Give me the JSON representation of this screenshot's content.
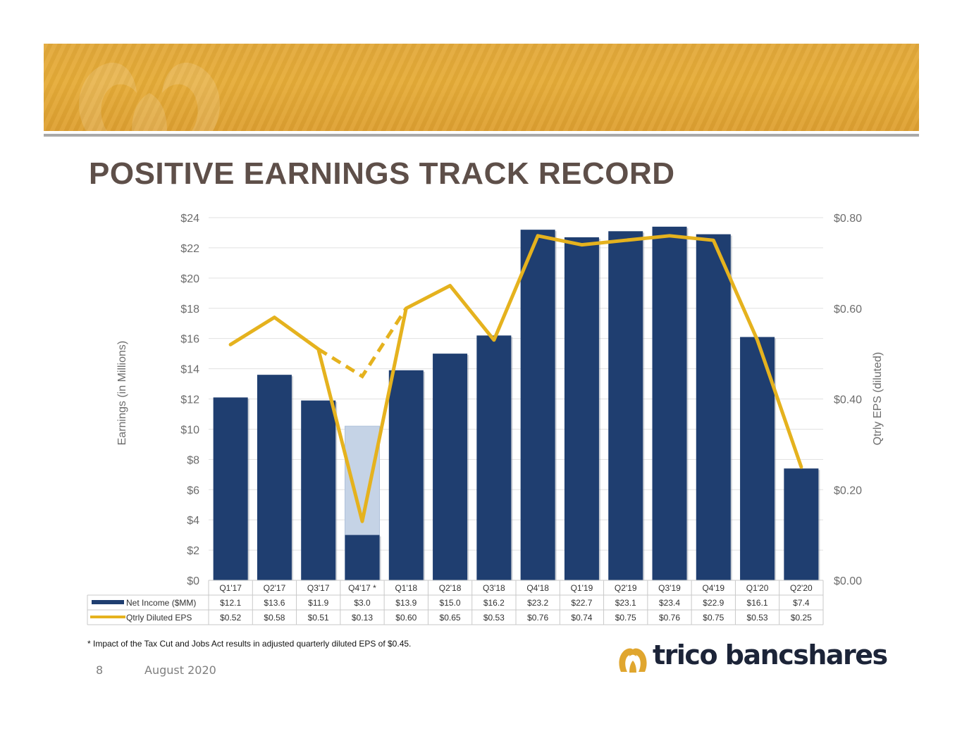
{
  "slide": {
    "title": "POSITIVE EARNINGS TRACK RECORD",
    "footnote": "* Impact of the Tax Cut and Jobs Act results in adjusted quarterly diluted EPS of $0.45.",
    "page_number": "8",
    "date": "August 2020",
    "logo_text": "trico bancshares",
    "banner_color": "#e5aa37",
    "title_color": "#5e4f49"
  },
  "chart_data": {
    "type": "bar",
    "categories": [
      "Q1'17",
      "Q2'17",
      "Q3'17",
      "Q4'17 *",
      "Q1'18",
      "Q2'18",
      "Q3'18",
      "Q4'18",
      "Q1'19",
      "Q2'19",
      "Q3'19",
      "Q4'19",
      "Q1'20",
      "Q2'20"
    ],
    "series": [
      {
        "name": "Net Income ($MM)",
        "type": "bar",
        "axis": "left",
        "color": "#1f3e70",
        "values": [
          12.1,
          13.6,
          11.9,
          3.0,
          13.9,
          15.0,
          16.2,
          23.2,
          22.7,
          23.1,
          23.4,
          22.9,
          16.1,
          7.4
        ],
        "labels": [
          "$12.1",
          "$13.6",
          "$11.9",
          "$3.0",
          "$13.9",
          "$15.0",
          "$16.2",
          "$23.2",
          "$22.7",
          "$23.1",
          "$23.4",
          "$22.9",
          "$16.1",
          "$7.4"
        ]
      },
      {
        "name": "Qtrly Diluted EPS",
        "type": "line",
        "axis": "right",
        "color": "#e5b21e",
        "values": [
          0.52,
          0.58,
          0.51,
          0.13,
          0.6,
          0.65,
          0.53,
          0.76,
          0.74,
          0.75,
          0.76,
          0.75,
          0.53,
          0.25
        ],
        "labels": [
          "$0.52",
          "$0.58",
          "$0.51",
          "$0.13",
          "$0.60",
          "$0.65",
          "$0.53",
          "$0.76",
          "$0.74",
          "$0.75",
          "$0.76",
          "$0.75",
          "$0.53",
          "$0.25"
        ]
      }
    ],
    "adjusted": {
      "category": "Q4'17 *",
      "net_income": 10.2,
      "eps": 0.45,
      "bar_color": "#c5d3e6"
    },
    "left_axis": {
      "label": "Earnings (in Millions)",
      "ylim": [
        0,
        24
      ],
      "ticks": [
        "$0",
        "$2",
        "$4",
        "$6",
        "$8",
        "$10",
        "$12",
        "$14",
        "$16",
        "$18",
        "$20",
        "$22",
        "$24"
      ]
    },
    "right_axis": {
      "label": "Qtrly EPS (diluted)",
      "ylim": [
        0,
        0.8
      ],
      "ticks": [
        "$0.00",
        "$0.20",
        "$0.40",
        "$0.60",
        "$0.80"
      ]
    },
    "grid": true,
    "legend": "data-table-bottom"
  }
}
